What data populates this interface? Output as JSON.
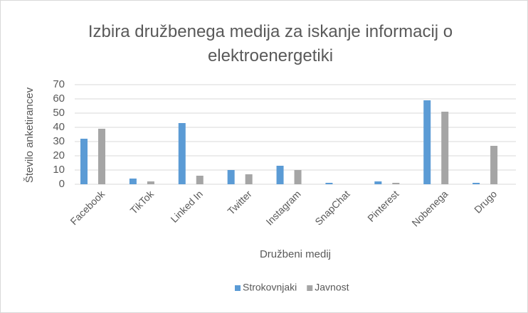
{
  "chart_data": {
    "type": "bar",
    "title": "Izbira družbenega medija za iskanje informacij o elektroenergetiki",
    "x_label": "Družbeni medij",
    "y_label": "Število anketirancev",
    "categories": [
      "Facebook",
      "TikTok",
      "Linked In",
      "Twitter",
      "Instagram",
      "SnapChat",
      "Pinterest",
      "Nobenega",
      "Drugo"
    ],
    "series": [
      {
        "name": "Strokovnjaki",
        "color": "#5b9bd5",
        "values": [
          32,
          4,
          43,
          10,
          13,
          1,
          2,
          59,
          1
        ]
      },
      {
        "name": "Javnost",
        "color": "#a5a5a5",
        "values": [
          39,
          2,
          6,
          7,
          10,
          0,
          1,
          51,
          27
        ]
      }
    ],
    "ylim": [
      0,
      70
    ],
    "yticks": [
      0,
      10,
      20,
      30,
      40,
      50,
      60,
      70
    ],
    "grid": true,
    "legend": "bottom"
  }
}
